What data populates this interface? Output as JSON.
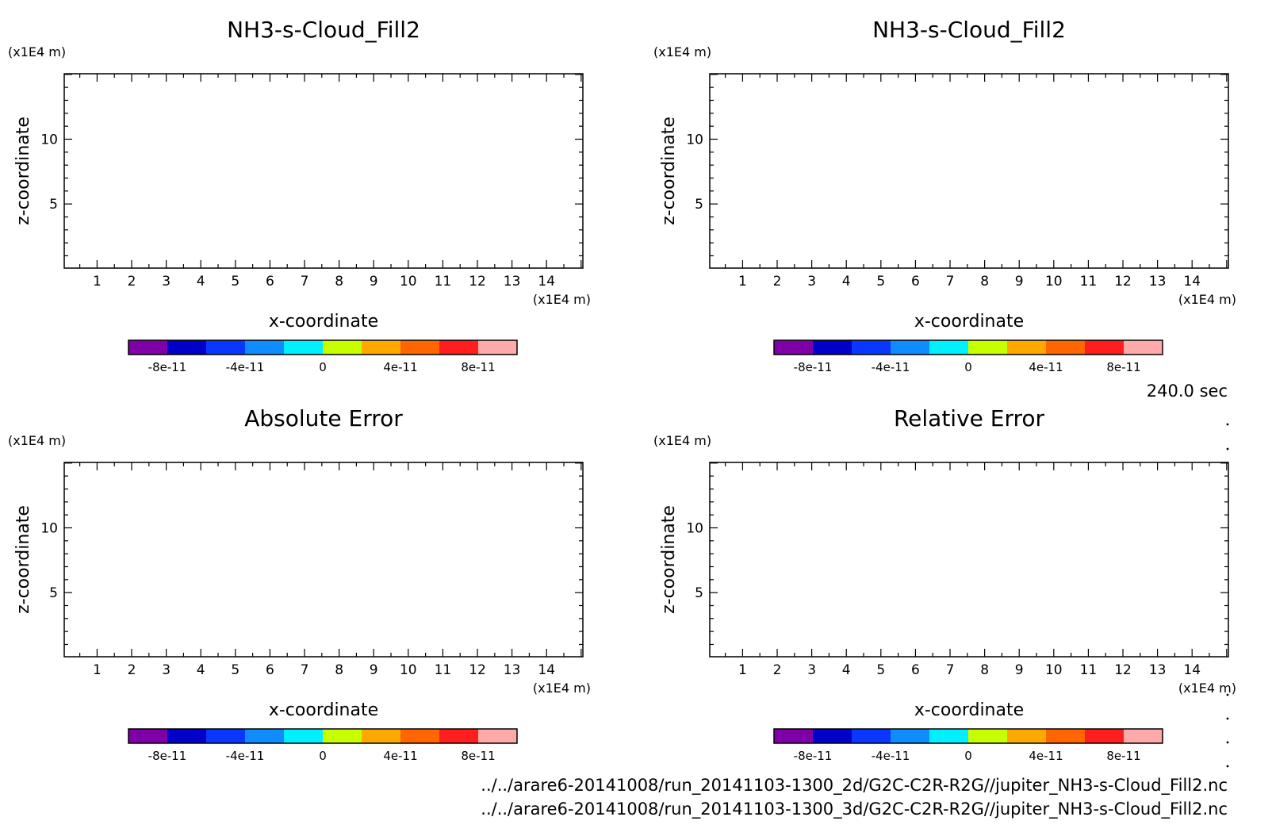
{
  "time_label": "240.0 sec",
  "file_paths": [
    "../../arare6-20141008/run_20141103-1300_2d/G2C-C2R-R2G//jupiter_NH3-s-Cloud_Fill2.nc",
    "../../arare6-20141008/run_20141103-1300_3d/G2C-C2R-R2G//jupiter_NH3-s-Cloud_Fill2.nc"
  ],
  "colorbar": {
    "colors": [
      "#7f00a8",
      "#0000c8",
      "#0a37ff",
      "#0f8cff",
      "#00f0ff",
      "#c8ff00",
      "#ffa800",
      "#ff6600",
      "#ff1e1e",
      "#ffaaaa"
    ],
    "tick_labels": [
      "-8e-11",
      "-4e-11",
      "0",
      "4e-11",
      "8e-11"
    ],
    "tick_values": [
      -8e-11,
      -4e-11,
      0,
      4e-11,
      8e-11
    ],
    "range": [
      -1e-10,
      1e-10
    ]
  },
  "chart_data": [
    {
      "type": "heatmap",
      "title": "NH3-s-Cloud_Fill2",
      "xlabel": "x-coordinate",
      "ylabel": "z-coordinate",
      "x_unit": "(x1E4 m)",
      "y_unit": "(x1E4 m)",
      "xlim": [
        0.05,
        15.05
      ],
      "ylim": [
        0.05,
        15.05
      ],
      "x_ticks": [
        1,
        2,
        3,
        4,
        5,
        6,
        7,
        8,
        9,
        10,
        11,
        12,
        13,
        14
      ],
      "y_ticks": [
        5,
        10
      ],
      "values": []
    },
    {
      "type": "heatmap",
      "title": "NH3-s-Cloud_Fill2",
      "xlabel": "x-coordinate",
      "ylabel": "z-coordinate",
      "x_unit": "(x1E4 m)",
      "y_unit": "(x1E4 m)",
      "xlim": [
        0.05,
        15.05
      ],
      "ylim": [
        0.05,
        15.05
      ],
      "x_ticks": [
        1,
        2,
        3,
        4,
        5,
        6,
        7,
        8,
        9,
        10,
        11,
        12,
        13,
        14
      ],
      "y_ticks": [
        5,
        10
      ],
      "values": []
    },
    {
      "type": "heatmap",
      "title": "Absolute Error",
      "xlabel": "x-coordinate",
      "ylabel": "z-coordinate",
      "x_unit": "(x1E4 m)",
      "y_unit": "(x1E4 m)",
      "xlim": [
        0.05,
        15.05
      ],
      "ylim": [
        0.05,
        15.05
      ],
      "x_ticks": [
        1,
        2,
        3,
        4,
        5,
        6,
        7,
        8,
        9,
        10,
        11,
        12,
        13,
        14
      ],
      "y_ticks": [
        5,
        10
      ],
      "values": []
    },
    {
      "type": "heatmap",
      "title": "Relative Error",
      "xlabel": "x-coordinate",
      "ylabel": "z-coordinate",
      "x_unit": "(x1E4 m)",
      "y_unit": "(x1E4 m)",
      "xlim": [
        0.05,
        15.05
      ],
      "ylim": [
        0.05,
        15.05
      ],
      "x_ticks": [
        1,
        2,
        3,
        4,
        5,
        6,
        7,
        8,
        9,
        10,
        11,
        12,
        13,
        14
      ],
      "y_ticks": [
        5,
        10
      ],
      "values": []
    }
  ]
}
